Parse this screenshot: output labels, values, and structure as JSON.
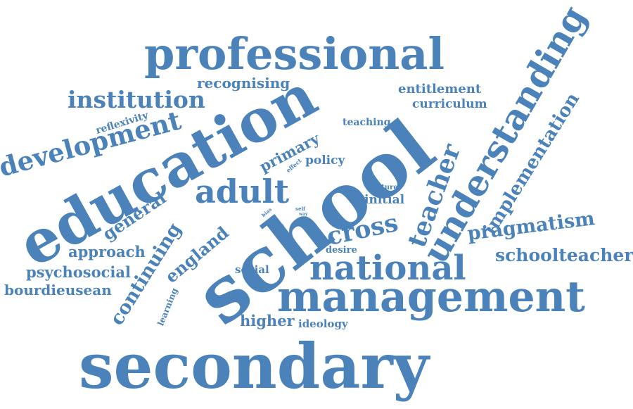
{
  "color": "#4a82b9",
  "words": {
    "secondary": "secondary",
    "school": "school",
    "management": "management",
    "education": "education",
    "professional": "professional",
    "understanding": "understanding",
    "national": "national",
    "adult": "adult",
    "development": "development",
    "teacher": "teacher",
    "institution": "institution",
    "cross": "cross",
    "continuing": "continuing",
    "implementation": "implementation",
    "pragmatism": "pragmatism",
    "schoolteacher": "schoolteacher",
    "psychosocial": "psychosocial",
    "bourdieusean": "bourdieusean",
    "approach": "approach",
    "general": "general",
    "england": "england",
    "primary": "primary",
    "higher": "higher",
    "recognising": "recognising",
    "entitlement": "entitlement",
    "curriculum": "curriculum",
    "policy": "policy",
    "initial": "initial",
    "ideology": "ideology",
    "social": "social",
    "teaching": "teaching",
    "reflexivity": "reflexivity",
    "desire": "desire",
    "learning": "learning",
    "culture": "culture",
    "effect": "effect",
    "bias": "bias",
    "role": "role",
    "self": "self",
    "way": "way"
  }
}
